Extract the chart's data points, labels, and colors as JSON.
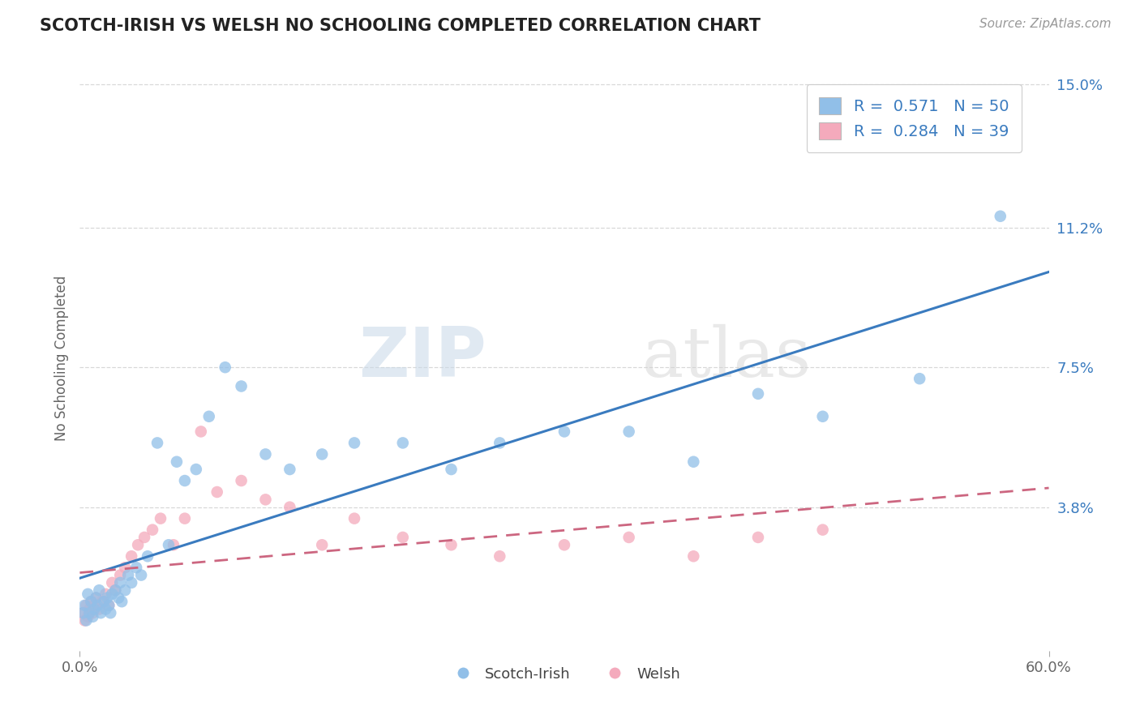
{
  "title": "SCOTCH-IRISH VS WELSH NO SCHOOLING COMPLETED CORRELATION CHART",
  "source_text": "Source: ZipAtlas.com",
  "ylabel": "No Schooling Completed",
  "xlim": [
    0.0,
    0.6
  ],
  "ylim": [
    0.0,
    0.155
  ],
  "ytick_labels": [
    "3.8%",
    "7.5%",
    "11.2%",
    "15.0%"
  ],
  "ytick_vals": [
    0.038,
    0.075,
    0.112,
    0.15
  ],
  "blue_color": "#91bfe8",
  "pink_color": "#f4aabc",
  "trend_blue": "#3a7bbf",
  "trend_pink": "#cc6680",
  "watermark_zip": "ZIP",
  "watermark_atlas": "atlas",
  "legend_line1": "R =  0.571   N = 50",
  "legend_line2": "R =  0.284   N = 39",
  "scotch_irish_x": [
    0.002,
    0.003,
    0.004,
    0.005,
    0.006,
    0.007,
    0.008,
    0.009,
    0.01,
    0.011,
    0.012,
    0.013,
    0.015,
    0.016,
    0.017,
    0.018,
    0.019,
    0.02,
    0.022,
    0.024,
    0.025,
    0.026,
    0.028,
    0.03,
    0.032,
    0.035,
    0.038,
    0.042,
    0.048,
    0.055,
    0.06,
    0.065,
    0.072,
    0.08,
    0.09,
    0.1,
    0.115,
    0.13,
    0.15,
    0.17,
    0.2,
    0.23,
    0.26,
    0.3,
    0.34,
    0.38,
    0.42,
    0.46,
    0.52,
    0.57
  ],
  "scotch_irish_y": [
    0.01,
    0.012,
    0.008,
    0.015,
    0.01,
    0.013,
    0.009,
    0.011,
    0.014,
    0.012,
    0.016,
    0.01,
    0.013,
    0.011,
    0.014,
    0.012,
    0.01,
    0.015,
    0.016,
    0.014,
    0.018,
    0.013,
    0.016,
    0.02,
    0.018,
    0.022,
    0.02,
    0.025,
    0.055,
    0.028,
    0.05,
    0.045,
    0.048,
    0.062,
    0.075,
    0.07,
    0.052,
    0.048,
    0.052,
    0.055,
    0.055,
    0.048,
    0.055,
    0.058,
    0.058,
    0.05,
    0.068,
    0.062,
    0.072,
    0.115
  ],
  "welsh_x": [
    0.002,
    0.003,
    0.004,
    0.005,
    0.006,
    0.007,
    0.008,
    0.009,
    0.01,
    0.012,
    0.014,
    0.016,
    0.018,
    0.02,
    0.022,
    0.025,
    0.028,
    0.032,
    0.036,
    0.04,
    0.045,
    0.05,
    0.058,
    0.065,
    0.075,
    0.085,
    0.1,
    0.115,
    0.13,
    0.15,
    0.17,
    0.2,
    0.23,
    0.26,
    0.3,
    0.34,
    0.38,
    0.42,
    0.46
  ],
  "welsh_y": [
    0.01,
    0.008,
    0.012,
    0.009,
    0.011,
    0.013,
    0.01,
    0.012,
    0.014,
    0.011,
    0.013,
    0.015,
    0.012,
    0.018,
    0.016,
    0.02,
    0.022,
    0.025,
    0.028,
    0.03,
    0.032,
    0.035,
    0.028,
    0.035,
    0.058,
    0.042,
    0.045,
    0.04,
    0.038,
    0.028,
    0.035,
    0.03,
    0.028,
    0.025,
    0.028,
    0.03,
    0.025,
    0.03,
    0.032
  ],
  "background_color": "#ffffff",
  "grid_color": "#d8d8d8"
}
